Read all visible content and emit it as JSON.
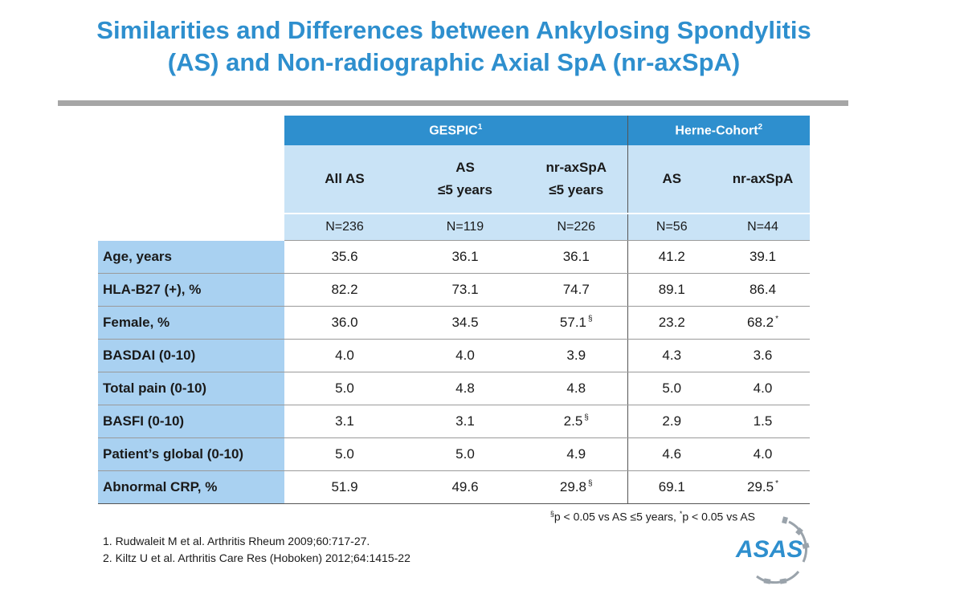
{
  "title": {
    "line1": "Similarities and Differences between Ankylosing Spondylitis",
    "line2": "(AS) and Non-radiographic Axial SpA (nr-axSpA)"
  },
  "table": {
    "groups": [
      {
        "label": "GESPIC",
        "sup": "1"
      },
      {
        "label": "Herne-Cohort",
        "sup": "2"
      }
    ],
    "columns": [
      {
        "line1": "All AS",
        "line2": "",
        "n": "N=236"
      },
      {
        "line1": "AS",
        "line2": "≤5 years",
        "n": "N=119"
      },
      {
        "line1": "nr-axSpA",
        "line2": "≤5 years",
        "n": "N=226"
      },
      {
        "line1": "AS",
        "line2": "",
        "n": "N=56"
      },
      {
        "line1": "nr-axSpA",
        "line2": "",
        "n": "N=44"
      }
    ],
    "rows": [
      {
        "label": "Age, years",
        "values": [
          "35.6",
          "36.1",
          "36.1",
          "41.2",
          "39.1"
        ],
        "marks": [
          "",
          "",
          "",
          "",
          ""
        ]
      },
      {
        "label": "HLA-B27 (+), %",
        "values": [
          "82.2",
          "73.1",
          "74.7",
          "89.1",
          "86.4"
        ],
        "marks": [
          "",
          "",
          "",
          "",
          ""
        ]
      },
      {
        "label": "Female, %",
        "values": [
          "36.0",
          "34.5",
          "57.1",
          "23.2",
          "68.2"
        ],
        "marks": [
          "",
          "",
          "§",
          "",
          "*"
        ]
      },
      {
        "label": "BASDAI (0-10)",
        "values": [
          "4.0",
          "4.0",
          "3.9",
          "4.3",
          "3.6"
        ],
        "marks": [
          "",
          "",
          "",
          "",
          ""
        ]
      },
      {
        "label": "Total pain (0-10)",
        "values": [
          "5.0",
          "4.8",
          "4.8",
          "5.0",
          "4.0"
        ],
        "marks": [
          "",
          "",
          "",
          "",
          ""
        ]
      },
      {
        "label": "BASFI (0-10)",
        "values": [
          "3.1",
          "3.1",
          "2.5",
          "2.9",
          "1.5"
        ],
        "marks": [
          "",
          "",
          "§",
          "",
          ""
        ]
      },
      {
        "label": "Patient’s global (0-10)",
        "values": [
          "5.0",
          "5.0",
          "4.9",
          "4.6",
          "4.0"
        ],
        "marks": [
          "",
          "",
          "",
          "",
          ""
        ]
      },
      {
        "label": "Abnormal CRP, %",
        "values": [
          "51.9",
          "49.6",
          "29.8",
          "69.1",
          "29.5"
        ],
        "marks": [
          "",
          "",
          "§",
          "",
          "*"
        ]
      }
    ]
  },
  "footnote": {
    "sym1": "§",
    "text1": "p < 0.05 vs AS ≤5 years, ",
    "sym2": "*",
    "text2": "p < 0.05 vs AS"
  },
  "references": [
    "1. Rudwaleit M et al. Arthritis Rheum 2009;60:717-27.",
    "2. Kiltz U et al. Arthritis Care Res (Hoboken) 2012;64:1415-22"
  ],
  "logo": {
    "text": "ASAS",
    "icon": "asas-logo-icon"
  },
  "colors": {
    "title": "#2e8fce",
    "header": "#2e8fce",
    "subheader": "#c9e3f6",
    "label_cell": "#a9d1f1",
    "rule": "#a6a6a6"
  }
}
